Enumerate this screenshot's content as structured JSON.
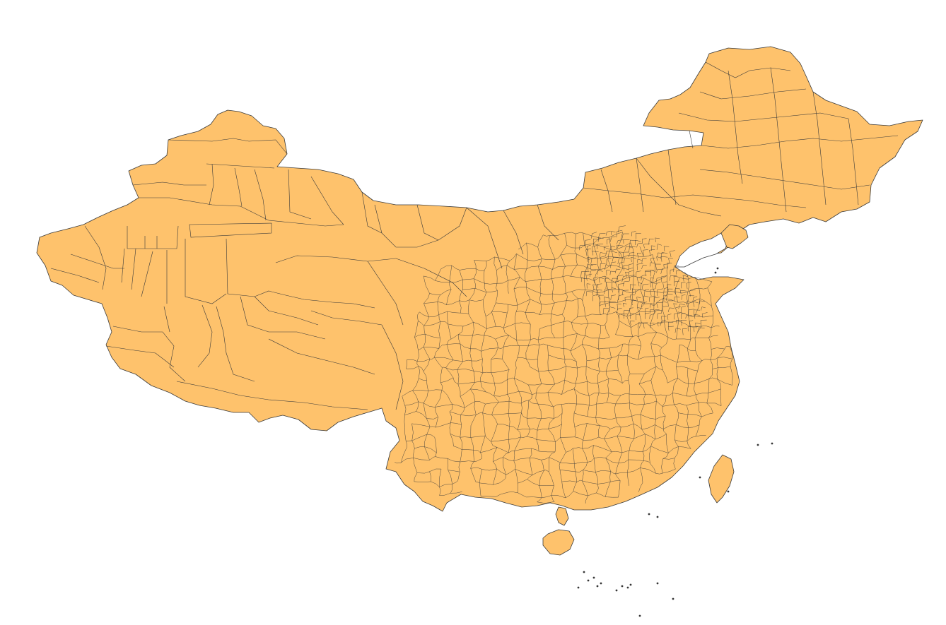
{
  "map": {
    "fill_color": "#FEC26C",
    "border_color": "#3A3A3A",
    "background": "#FFFFFF"
  }
}
